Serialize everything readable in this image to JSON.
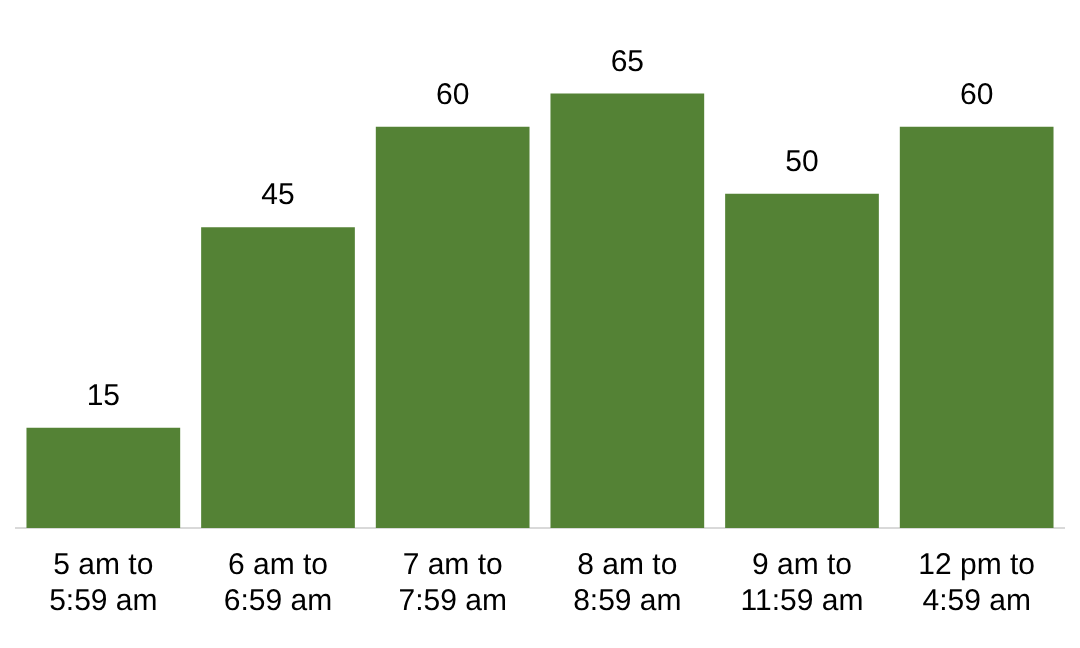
{
  "chart_data": {
    "type": "bar",
    "categories": [
      "5 am to 5:59 am",
      "6 am to 6:59 am",
      "7 am to 7:59 am",
      "8 am to 8:59 am",
      "9 am to 11:59 am",
      "12 pm to 4:59 am"
    ],
    "values": [
      15,
      45,
      60,
      65,
      50,
      60
    ],
    "color": "#548235",
    "data_labels": true,
    "grid": false,
    "legend": false
  }
}
